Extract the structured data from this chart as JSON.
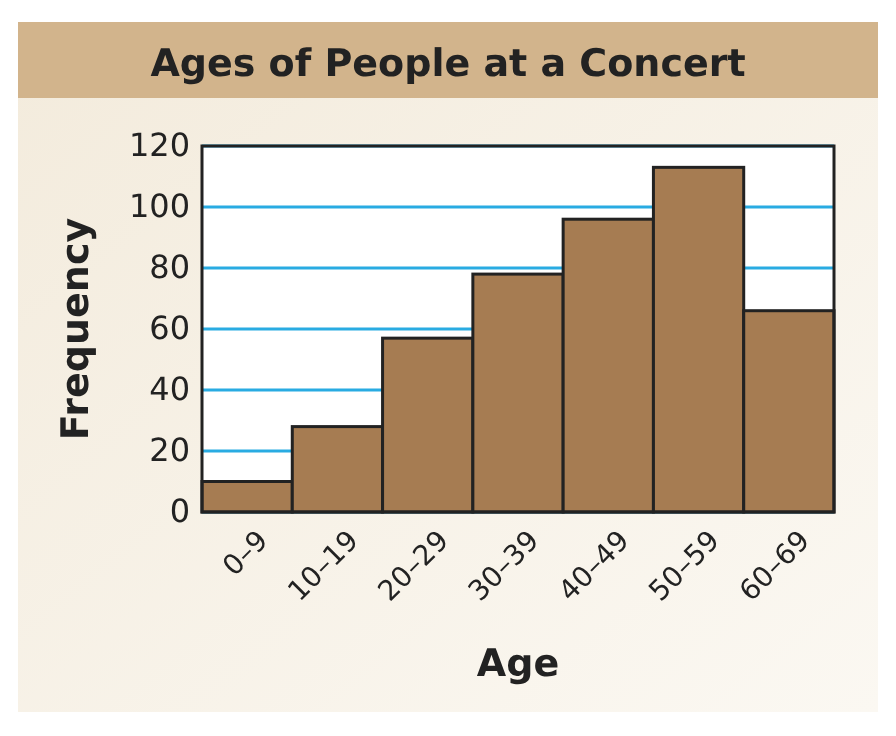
{
  "chart_data": {
    "type": "bar",
    "title": "Ages of People at a Concert",
    "xlabel": "Age",
    "ylabel": "Frequency",
    "categories": [
      "0–9",
      "10–19",
      "20–29",
      "30–39",
      "40–49",
      "50–59",
      "60–69"
    ],
    "values": [
      10,
      28,
      57,
      78,
      96,
      113,
      66
    ],
    "color": "#a67c52",
    "ylim": [
      0,
      120
    ],
    "yticks": [
      0,
      20,
      40,
      60,
      80,
      100,
      120
    ],
    "grid": "y"
  }
}
